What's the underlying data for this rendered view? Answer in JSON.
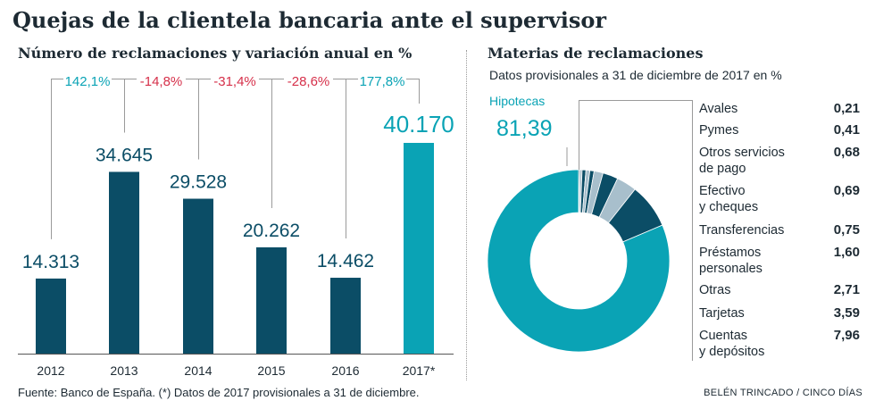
{
  "header": {
    "title": "Quejas de la clientela bancaria ante el supervisor",
    "bar_subtitle": "Número de reclamaciones y variación anual en %",
    "donut_title": "Materias de reclamaciones",
    "donut_subtitle": "Datos provisionales a 31 de diciembre de 2017 en %"
  },
  "footer": {
    "source": "Fuente: Banco de España. (*) Datos de 2017 provisionales a 31 de diciembre.",
    "credit": "BELÉN TRINCADO / CINCO DÍAS"
  },
  "colors": {
    "dark": "#0b4d66",
    "teal": "#0aa3b5",
    "light": "#a8bfcc",
    "red": "#d6304a"
  },
  "chart_data": [
    {
      "type": "bar",
      "title": "Número de reclamaciones y variación anual en %",
      "categories": [
        "2012",
        "2013",
        "2014",
        "2015",
        "2016",
        "2017*"
      ],
      "values": [
        14313,
        34645,
        29528,
        20262,
        14462,
        40170
      ],
      "value_labels": [
        "14.313",
        "34.645",
        "29.528",
        "20.262",
        "14.462",
        "40.170"
      ],
      "variation_labels": [
        "142,1%",
        "-14,8%",
        "-31,4%",
        "-28,6%",
        "177,8%"
      ],
      "ylim": [
        0,
        42000
      ],
      "xlabel": "",
      "ylabel": ""
    },
    {
      "type": "pie",
      "title": "Materias de reclamaciones",
      "subtitle": "Datos provisionales a 31 de diciembre de 2017 en %",
      "highlight": {
        "label": "Hipotecas",
        "value_label": "81,39",
        "value": 81.39
      },
      "segments": [
        {
          "label": "Avales",
          "value": 0.21,
          "value_label": "0,21"
        },
        {
          "label": "Pymes",
          "value": 0.41,
          "value_label": "0,41"
        },
        {
          "label": [
            "Otros servicios",
            "de pago"
          ],
          "value": 0.68,
          "value_label": "0,68"
        },
        {
          "label": [
            "Efectivo",
            "y cheques"
          ],
          "value": 0.69,
          "value_label": "0,69"
        },
        {
          "label": "Transferencias",
          "value": 0.75,
          "value_label": "0,75"
        },
        {
          "label": [
            "Préstamos",
            "personales"
          ],
          "value": 1.6,
          "value_label": "1,60"
        },
        {
          "label": "Otras",
          "value": 2.71,
          "value_label": "2,71"
        },
        {
          "label": "Tarjetas",
          "value": 3.59,
          "value_label": "3,59"
        },
        {
          "label": [
            "Cuentas",
            "y depósitos"
          ],
          "value": 7.96,
          "value_label": "7,96"
        }
      ]
    }
  ]
}
